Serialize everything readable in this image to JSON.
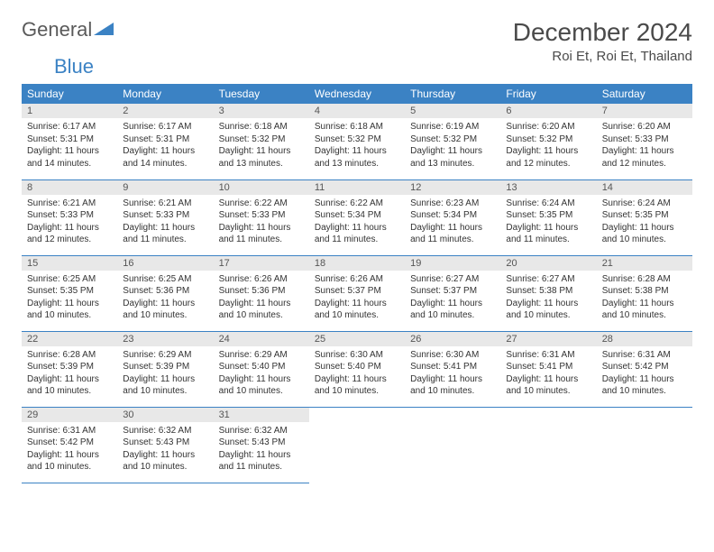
{
  "logo": {
    "text_general": "General",
    "text_blue": "Blue",
    "icon_color": "#3b82c4"
  },
  "title": "December 2024",
  "location": "Roi Et, Roi Et, Thailand",
  "colors": {
    "header_bg": "#3b82c4",
    "header_text": "#ffffff",
    "day_num_bg": "#e8e8e8",
    "border": "#3b82c4",
    "text": "#333333"
  },
  "day_headers": [
    "Sunday",
    "Monday",
    "Tuesday",
    "Wednesday",
    "Thursday",
    "Friday",
    "Saturday"
  ],
  "weeks": [
    [
      {
        "num": "1",
        "sunrise": "Sunrise: 6:17 AM",
        "sunset": "Sunset: 5:31 PM",
        "daylight": "Daylight: 11 hours and 14 minutes."
      },
      {
        "num": "2",
        "sunrise": "Sunrise: 6:17 AM",
        "sunset": "Sunset: 5:31 PM",
        "daylight": "Daylight: 11 hours and 14 minutes."
      },
      {
        "num": "3",
        "sunrise": "Sunrise: 6:18 AM",
        "sunset": "Sunset: 5:32 PM",
        "daylight": "Daylight: 11 hours and 13 minutes."
      },
      {
        "num": "4",
        "sunrise": "Sunrise: 6:18 AM",
        "sunset": "Sunset: 5:32 PM",
        "daylight": "Daylight: 11 hours and 13 minutes."
      },
      {
        "num": "5",
        "sunrise": "Sunrise: 6:19 AM",
        "sunset": "Sunset: 5:32 PM",
        "daylight": "Daylight: 11 hours and 13 minutes."
      },
      {
        "num": "6",
        "sunrise": "Sunrise: 6:20 AM",
        "sunset": "Sunset: 5:32 PM",
        "daylight": "Daylight: 11 hours and 12 minutes."
      },
      {
        "num": "7",
        "sunrise": "Sunrise: 6:20 AM",
        "sunset": "Sunset: 5:33 PM",
        "daylight": "Daylight: 11 hours and 12 minutes."
      }
    ],
    [
      {
        "num": "8",
        "sunrise": "Sunrise: 6:21 AM",
        "sunset": "Sunset: 5:33 PM",
        "daylight": "Daylight: 11 hours and 12 minutes."
      },
      {
        "num": "9",
        "sunrise": "Sunrise: 6:21 AM",
        "sunset": "Sunset: 5:33 PM",
        "daylight": "Daylight: 11 hours and 11 minutes."
      },
      {
        "num": "10",
        "sunrise": "Sunrise: 6:22 AM",
        "sunset": "Sunset: 5:33 PM",
        "daylight": "Daylight: 11 hours and 11 minutes."
      },
      {
        "num": "11",
        "sunrise": "Sunrise: 6:22 AM",
        "sunset": "Sunset: 5:34 PM",
        "daylight": "Daylight: 11 hours and 11 minutes."
      },
      {
        "num": "12",
        "sunrise": "Sunrise: 6:23 AM",
        "sunset": "Sunset: 5:34 PM",
        "daylight": "Daylight: 11 hours and 11 minutes."
      },
      {
        "num": "13",
        "sunrise": "Sunrise: 6:24 AM",
        "sunset": "Sunset: 5:35 PM",
        "daylight": "Daylight: 11 hours and 11 minutes."
      },
      {
        "num": "14",
        "sunrise": "Sunrise: 6:24 AM",
        "sunset": "Sunset: 5:35 PM",
        "daylight": "Daylight: 11 hours and 10 minutes."
      }
    ],
    [
      {
        "num": "15",
        "sunrise": "Sunrise: 6:25 AM",
        "sunset": "Sunset: 5:35 PM",
        "daylight": "Daylight: 11 hours and 10 minutes."
      },
      {
        "num": "16",
        "sunrise": "Sunrise: 6:25 AM",
        "sunset": "Sunset: 5:36 PM",
        "daylight": "Daylight: 11 hours and 10 minutes."
      },
      {
        "num": "17",
        "sunrise": "Sunrise: 6:26 AM",
        "sunset": "Sunset: 5:36 PM",
        "daylight": "Daylight: 11 hours and 10 minutes."
      },
      {
        "num": "18",
        "sunrise": "Sunrise: 6:26 AM",
        "sunset": "Sunset: 5:37 PM",
        "daylight": "Daylight: 11 hours and 10 minutes."
      },
      {
        "num": "19",
        "sunrise": "Sunrise: 6:27 AM",
        "sunset": "Sunset: 5:37 PM",
        "daylight": "Daylight: 11 hours and 10 minutes."
      },
      {
        "num": "20",
        "sunrise": "Sunrise: 6:27 AM",
        "sunset": "Sunset: 5:38 PM",
        "daylight": "Daylight: 11 hours and 10 minutes."
      },
      {
        "num": "21",
        "sunrise": "Sunrise: 6:28 AM",
        "sunset": "Sunset: 5:38 PM",
        "daylight": "Daylight: 11 hours and 10 minutes."
      }
    ],
    [
      {
        "num": "22",
        "sunrise": "Sunrise: 6:28 AM",
        "sunset": "Sunset: 5:39 PM",
        "daylight": "Daylight: 11 hours and 10 minutes."
      },
      {
        "num": "23",
        "sunrise": "Sunrise: 6:29 AM",
        "sunset": "Sunset: 5:39 PM",
        "daylight": "Daylight: 11 hours and 10 minutes."
      },
      {
        "num": "24",
        "sunrise": "Sunrise: 6:29 AM",
        "sunset": "Sunset: 5:40 PM",
        "daylight": "Daylight: 11 hours and 10 minutes."
      },
      {
        "num": "25",
        "sunrise": "Sunrise: 6:30 AM",
        "sunset": "Sunset: 5:40 PM",
        "daylight": "Daylight: 11 hours and 10 minutes."
      },
      {
        "num": "26",
        "sunrise": "Sunrise: 6:30 AM",
        "sunset": "Sunset: 5:41 PM",
        "daylight": "Daylight: 11 hours and 10 minutes."
      },
      {
        "num": "27",
        "sunrise": "Sunrise: 6:31 AM",
        "sunset": "Sunset: 5:41 PM",
        "daylight": "Daylight: 11 hours and 10 minutes."
      },
      {
        "num": "28",
        "sunrise": "Sunrise: 6:31 AM",
        "sunset": "Sunset: 5:42 PM",
        "daylight": "Daylight: 11 hours and 10 minutes."
      }
    ],
    [
      {
        "num": "29",
        "sunrise": "Sunrise: 6:31 AM",
        "sunset": "Sunset: 5:42 PM",
        "daylight": "Daylight: 11 hours and 10 minutes."
      },
      {
        "num": "30",
        "sunrise": "Sunrise: 6:32 AM",
        "sunset": "Sunset: 5:43 PM",
        "daylight": "Daylight: 11 hours and 10 minutes."
      },
      {
        "num": "31",
        "sunrise": "Sunrise: 6:32 AM",
        "sunset": "Sunset: 5:43 PM",
        "daylight": "Daylight: 11 hours and 11 minutes."
      },
      null,
      null,
      null,
      null
    ]
  ]
}
